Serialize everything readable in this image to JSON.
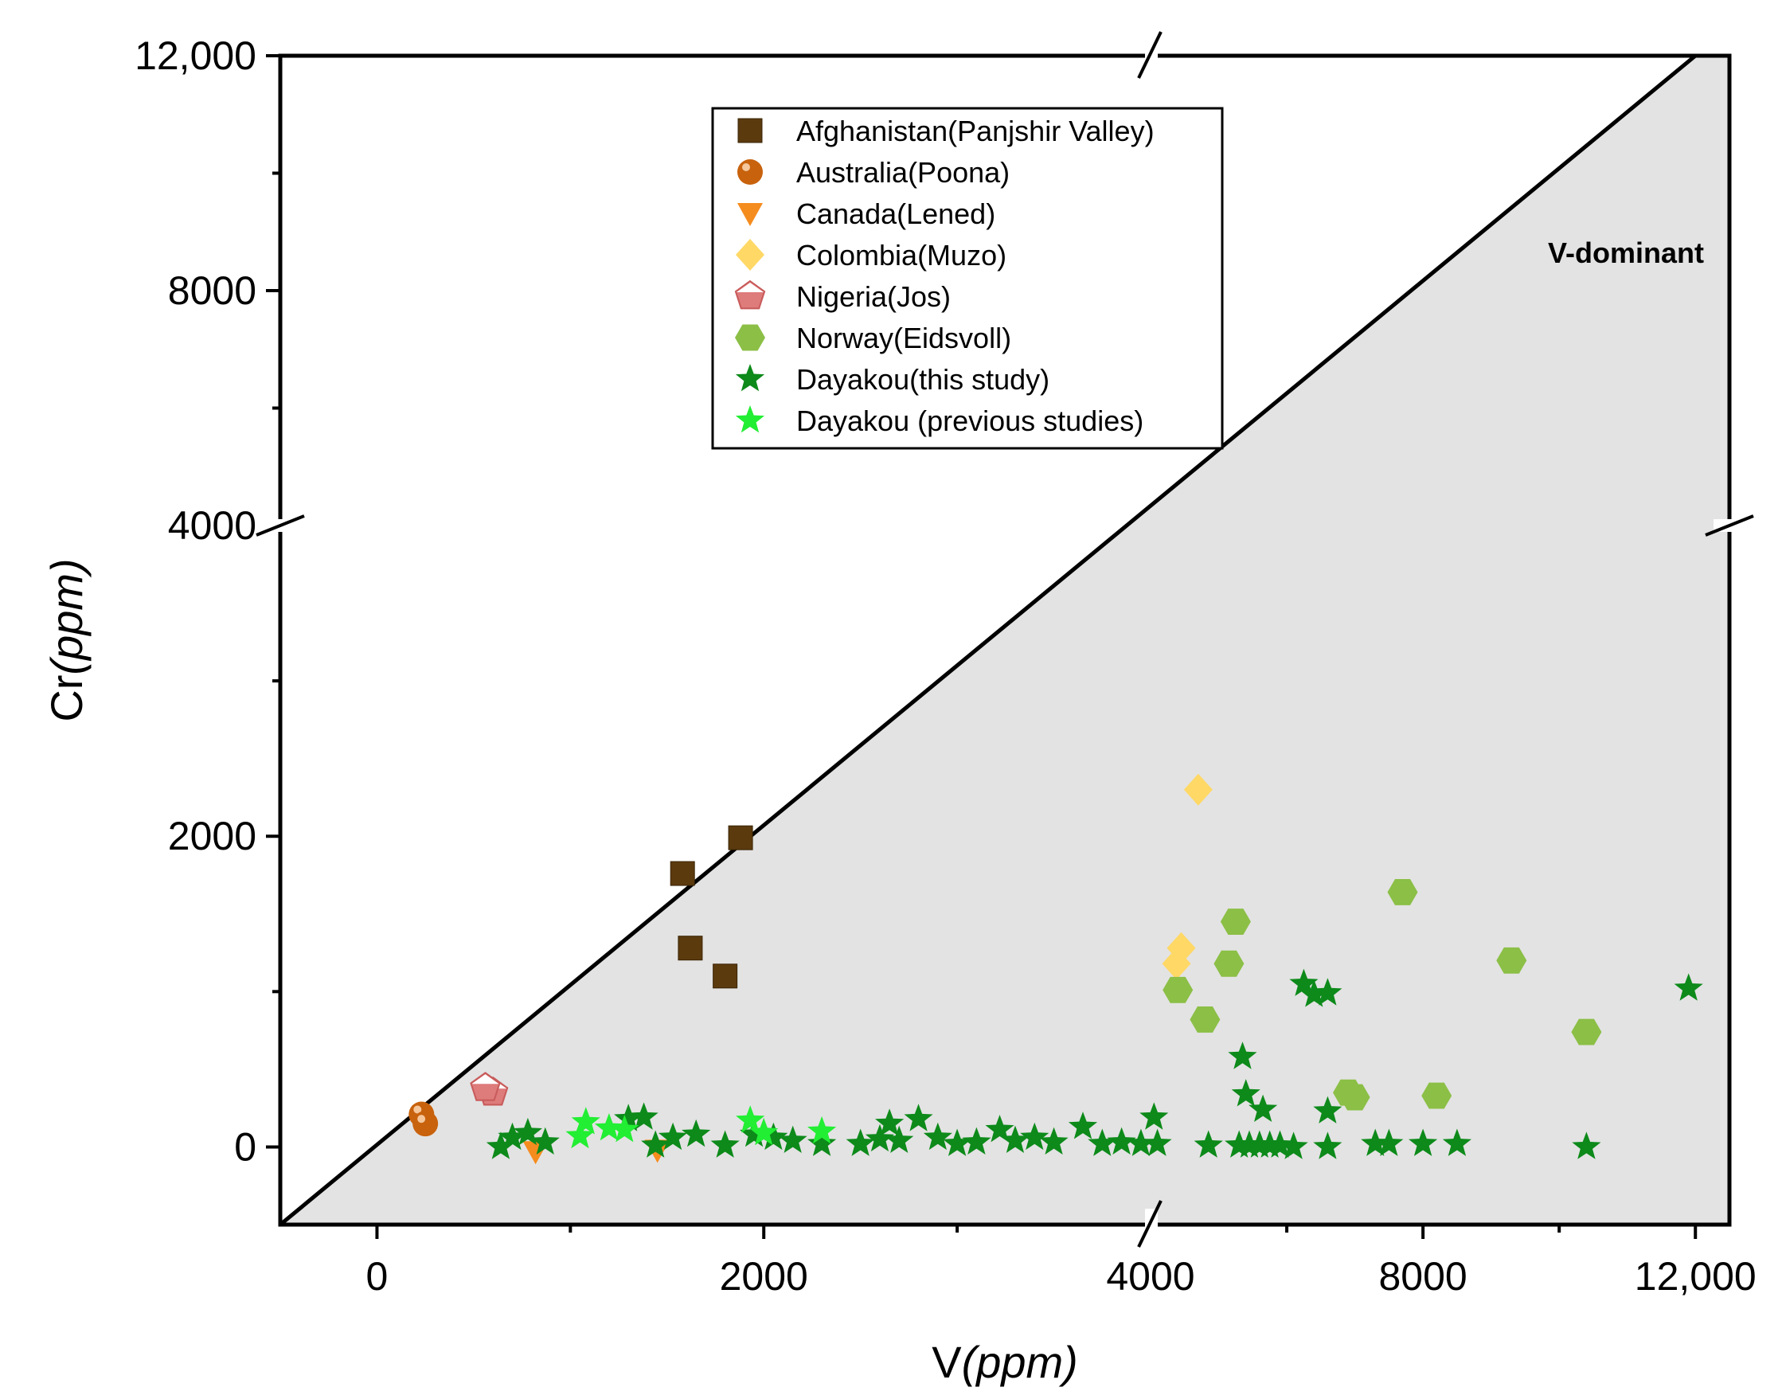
{
  "chart_data": {
    "type": "scatter",
    "xlabel": {
      "main": "V",
      "unit": "(ppm)"
    },
    "ylabel": {
      "main": "Cr",
      "unit": "(ppm)"
    },
    "annotation": "V-dominant",
    "x_axis": {
      "segments": [
        {
          "range": [
            -500,
            4000
          ],
          "ticks": [
            0,
            2000,
            4000
          ]
        },
        {
          "range": [
            4000,
            12500
          ],
          "ticks": [
            4000,
            8000,
            12000
          ]
        }
      ],
      "tick_labels": [
        "0",
        "2000",
        "4000",
        "8000",
        "12,000"
      ],
      "break_at": 4000
    },
    "y_axis": {
      "segments": [
        {
          "range": [
            -500,
            4000
          ],
          "ticks": [
            0,
            2000,
            4000
          ]
        },
        {
          "range": [
            4000,
            12000
          ],
          "ticks": [
            4000,
            8000,
            12000
          ]
        }
      ],
      "tick_labels": [
        "0",
        "2000",
        "4000",
        "8000",
        "12,000"
      ],
      "break_at": 4000
    },
    "series": [
      {
        "name": "Afghanistan(Panjshir Valley)",
        "marker": "square",
        "color": "#5b3a0e",
        "points": [
          [
            1580,
            1760
          ],
          [
            1620,
            1280
          ],
          [
            1800,
            1100
          ],
          [
            1880,
            1990
          ]
        ]
      },
      {
        "name": "Australia(Poona)",
        "marker": "sphere",
        "color": "#c8620d",
        "points": [
          [
            230,
            210
          ],
          [
            250,
            150
          ]
        ]
      },
      {
        "name": "Canada(Lened)",
        "marker": "triangle-down",
        "color": "#f58c1e",
        "points": [
          [
            820,
            -30
          ],
          [
            1450,
            -20
          ]
        ]
      },
      {
        "name": "Colombia(Muzo)",
        "marker": "diamond",
        "color": "#ffd866",
        "points": [
          [
            4700,
            2300
          ],
          [
            4450,
            1280
          ],
          [
            4380,
            1180
          ]
        ]
      },
      {
        "name": "Nigeria(Jos)",
        "marker": "pentagon",
        "color": "#de7b7b",
        "points": [
          [
            600,
            350
          ],
          [
            560,
            380
          ]
        ]
      },
      {
        "name": "Norway(Eidsvoll)",
        "marker": "hexagon",
        "color": "#8bbf46",
        "points": [
          [
            7700,
            1640
          ],
          [
            9300,
            1200
          ],
          [
            10400,
            740
          ],
          [
            5250,
            1450
          ],
          [
            5150,
            1180
          ],
          [
            4400,
            1010
          ],
          [
            4800,
            820
          ],
          [
            6900,
            350
          ],
          [
            7000,
            320
          ],
          [
            8200,
            330
          ]
        ]
      },
      {
        "name": "Dayakou(this study)",
        "marker": "star",
        "color": "#0d8a1a",
        "points": [
          [
            11900,
            1020
          ],
          [
            6250,
            1050
          ],
          [
            6400,
            980
          ],
          [
            6600,
            990
          ],
          [
            5350,
            580
          ],
          [
            5400,
            340
          ],
          [
            5650,
            240
          ],
          [
            6600,
            230
          ],
          [
            4050,
            190
          ],
          [
            4100,
            20
          ],
          [
            4850,
            10
          ],
          [
            5300,
            10
          ],
          [
            5450,
            10
          ],
          [
            5600,
            10
          ],
          [
            5750,
            10
          ],
          [
            5900,
            10
          ],
          [
            6100,
            0
          ],
          [
            6600,
            0
          ],
          [
            7300,
            20
          ],
          [
            7500,
            20
          ],
          [
            8000,
            20
          ],
          [
            8500,
            20
          ],
          [
            10400,
            0
          ],
          [
            3650,
            130
          ],
          [
            3220,
            110
          ],
          [
            3400,
            60
          ],
          [
            3000,
            20
          ],
          [
            2800,
            180
          ],
          [
            2650,
            150
          ],
          [
            2500,
            20
          ],
          [
            2300,
            20
          ],
          [
            2150,
            40
          ],
          [
            2050,
            60
          ],
          [
            1950,
            80
          ],
          [
            1800,
            10
          ],
          [
            1650,
            80
          ],
          [
            1530,
            60
          ],
          [
            1440,
            10
          ],
          [
            1380,
            190
          ],
          [
            1300,
            180
          ],
          [
            870,
            30
          ],
          [
            700,
            60
          ],
          [
            640,
            0
          ],
          [
            780,
            90
          ],
          [
            2600,
            50
          ],
          [
            2700,
            40
          ],
          [
            2900,
            60
          ],
          [
            3100,
            30
          ],
          [
            3300,
            40
          ],
          [
            3500,
            30
          ],
          [
            3750,
            20
          ],
          [
            3850,
            30
          ],
          [
            3950,
            20
          ]
        ]
      },
      {
        "name": "Dayakou (previous studies)",
        "marker": "star",
        "color": "#22ee33",
        "points": [
          [
            1080,
            160
          ],
          [
            1050,
            70
          ],
          [
            1200,
            120
          ],
          [
            1280,
            110
          ],
          [
            1930,
            170
          ],
          [
            2300,
            100
          ],
          [
            2000,
            90
          ]
        ]
      }
    ]
  }
}
